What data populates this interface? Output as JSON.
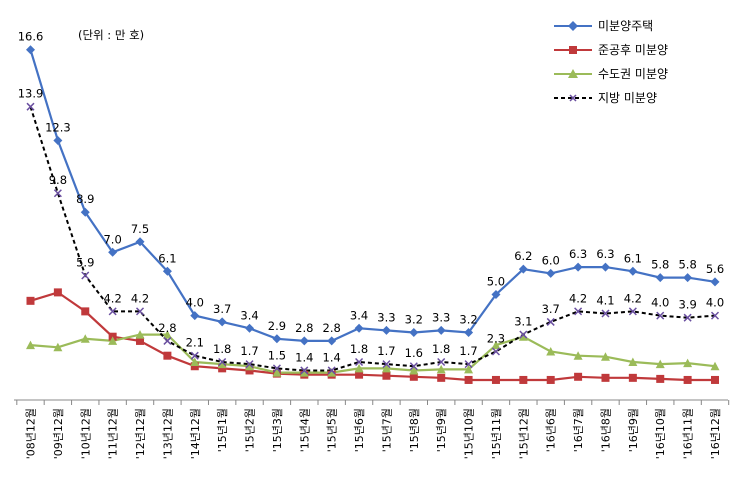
{
  "chart_data": {
    "type": "line",
    "unit_label": "(단위 : 만 호)",
    "categories": [
      "'08년12월",
      "'09년12월",
      "'10년12월",
      "'11년12월",
      "'12년12월",
      "'13년12월",
      "'14년12월",
      "'15년1월",
      "'15년2월",
      "'15년3월",
      "'15년4월",
      "'15년5월",
      "'15년6월",
      "'15년7월",
      "'15년8월",
      "'15년9월",
      "'15년10월",
      "'15년11월",
      "'15년12월",
      "'16년6월",
      "'16년7월",
      "'16년8월",
      "'16년9월",
      "'16년10월",
      "'16년11월",
      "'16년12월"
    ],
    "ylim": [
      0,
      18
    ],
    "series": [
      {
        "name": "미분양주택",
        "color": "#4472c4",
        "marker": "diamond",
        "style": "solid",
        "values": [
          16.6,
          12.3,
          8.9,
          7.0,
          7.5,
          6.1,
          4.0,
          3.7,
          3.4,
          2.9,
          2.8,
          2.8,
          3.4,
          3.3,
          3.2,
          3.3,
          3.2,
          5.0,
          6.2,
          6.0,
          6.3,
          6.3,
          6.1,
          5.8,
          5.8,
          5.6
        ],
        "labels": [
          "16.6",
          "12.3",
          "8.9",
          "7.0",
          "7.5",
          "6.1",
          "4.0",
          "3.7",
          "3.4",
          "2.9",
          "2.8",
          "2.8",
          "3.4",
          "3.3",
          "3.2",
          "3.3",
          "3.2",
          "5.0",
          "6.2",
          "6.0",
          "6.3",
          "6.3",
          "6.1",
          "5.8",
          "5.8",
          "5.6"
        ]
      },
      {
        "name": "준공후 미분양",
        "color": "#c0393b",
        "marker": "square",
        "style": "solid",
        "values": [
          4.7,
          5.1,
          4.2,
          3.0,
          2.8,
          2.1,
          1.6,
          1.5,
          1.4,
          1.25,
          1.2,
          1.2,
          1.2,
          1.15,
          1.1,
          1.05,
          0.95,
          0.95,
          0.95,
          0.95,
          1.1,
          1.05,
          1.05,
          1.0,
          0.95,
          0.95
        ],
        "labels": []
      },
      {
        "name": "수도권 미분양",
        "color": "#9bbb59",
        "marker": "triangle",
        "style": "solid",
        "values": [
          2.6,
          2.5,
          2.9,
          2.8,
          3.1,
          3.1,
          1.8,
          1.7,
          1.6,
          1.3,
          1.3,
          1.3,
          1.5,
          1.5,
          1.4,
          1.45,
          1.45,
          2.6,
          3.0,
          2.3,
          2.1,
          2.05,
          1.8,
          1.7,
          1.75,
          1.6
        ],
        "labels": []
      },
      {
        "name": "지방 미분양",
        "color": "#000000",
        "marker": "x",
        "style": "dashed",
        "values": [
          13.9,
          9.8,
          5.9,
          4.2,
          4.2,
          2.8,
          2.1,
          1.8,
          1.7,
          1.5,
          1.4,
          1.4,
          1.8,
          1.7,
          1.6,
          1.8,
          1.7,
          2.3,
          3.1,
          3.7,
          4.2,
          4.1,
          4.2,
          4.0,
          3.9,
          4.0
        ],
        "labels": [
          "13.9",
          "9.8",
          "5.9",
          "4.2",
          "4.2",
          "2.8",
          "2.1",
          "1.8",
          "1.7",
          "1.5",
          "1.4",
          "1.4",
          "1.8",
          "1.7",
          "1.6",
          "1.8",
          "1.7",
          "2.3",
          "3.1",
          "3.7",
          "4.2",
          "4.1",
          "4.2",
          "4.0",
          "3.9",
          "4.0"
        ]
      }
    ]
  }
}
